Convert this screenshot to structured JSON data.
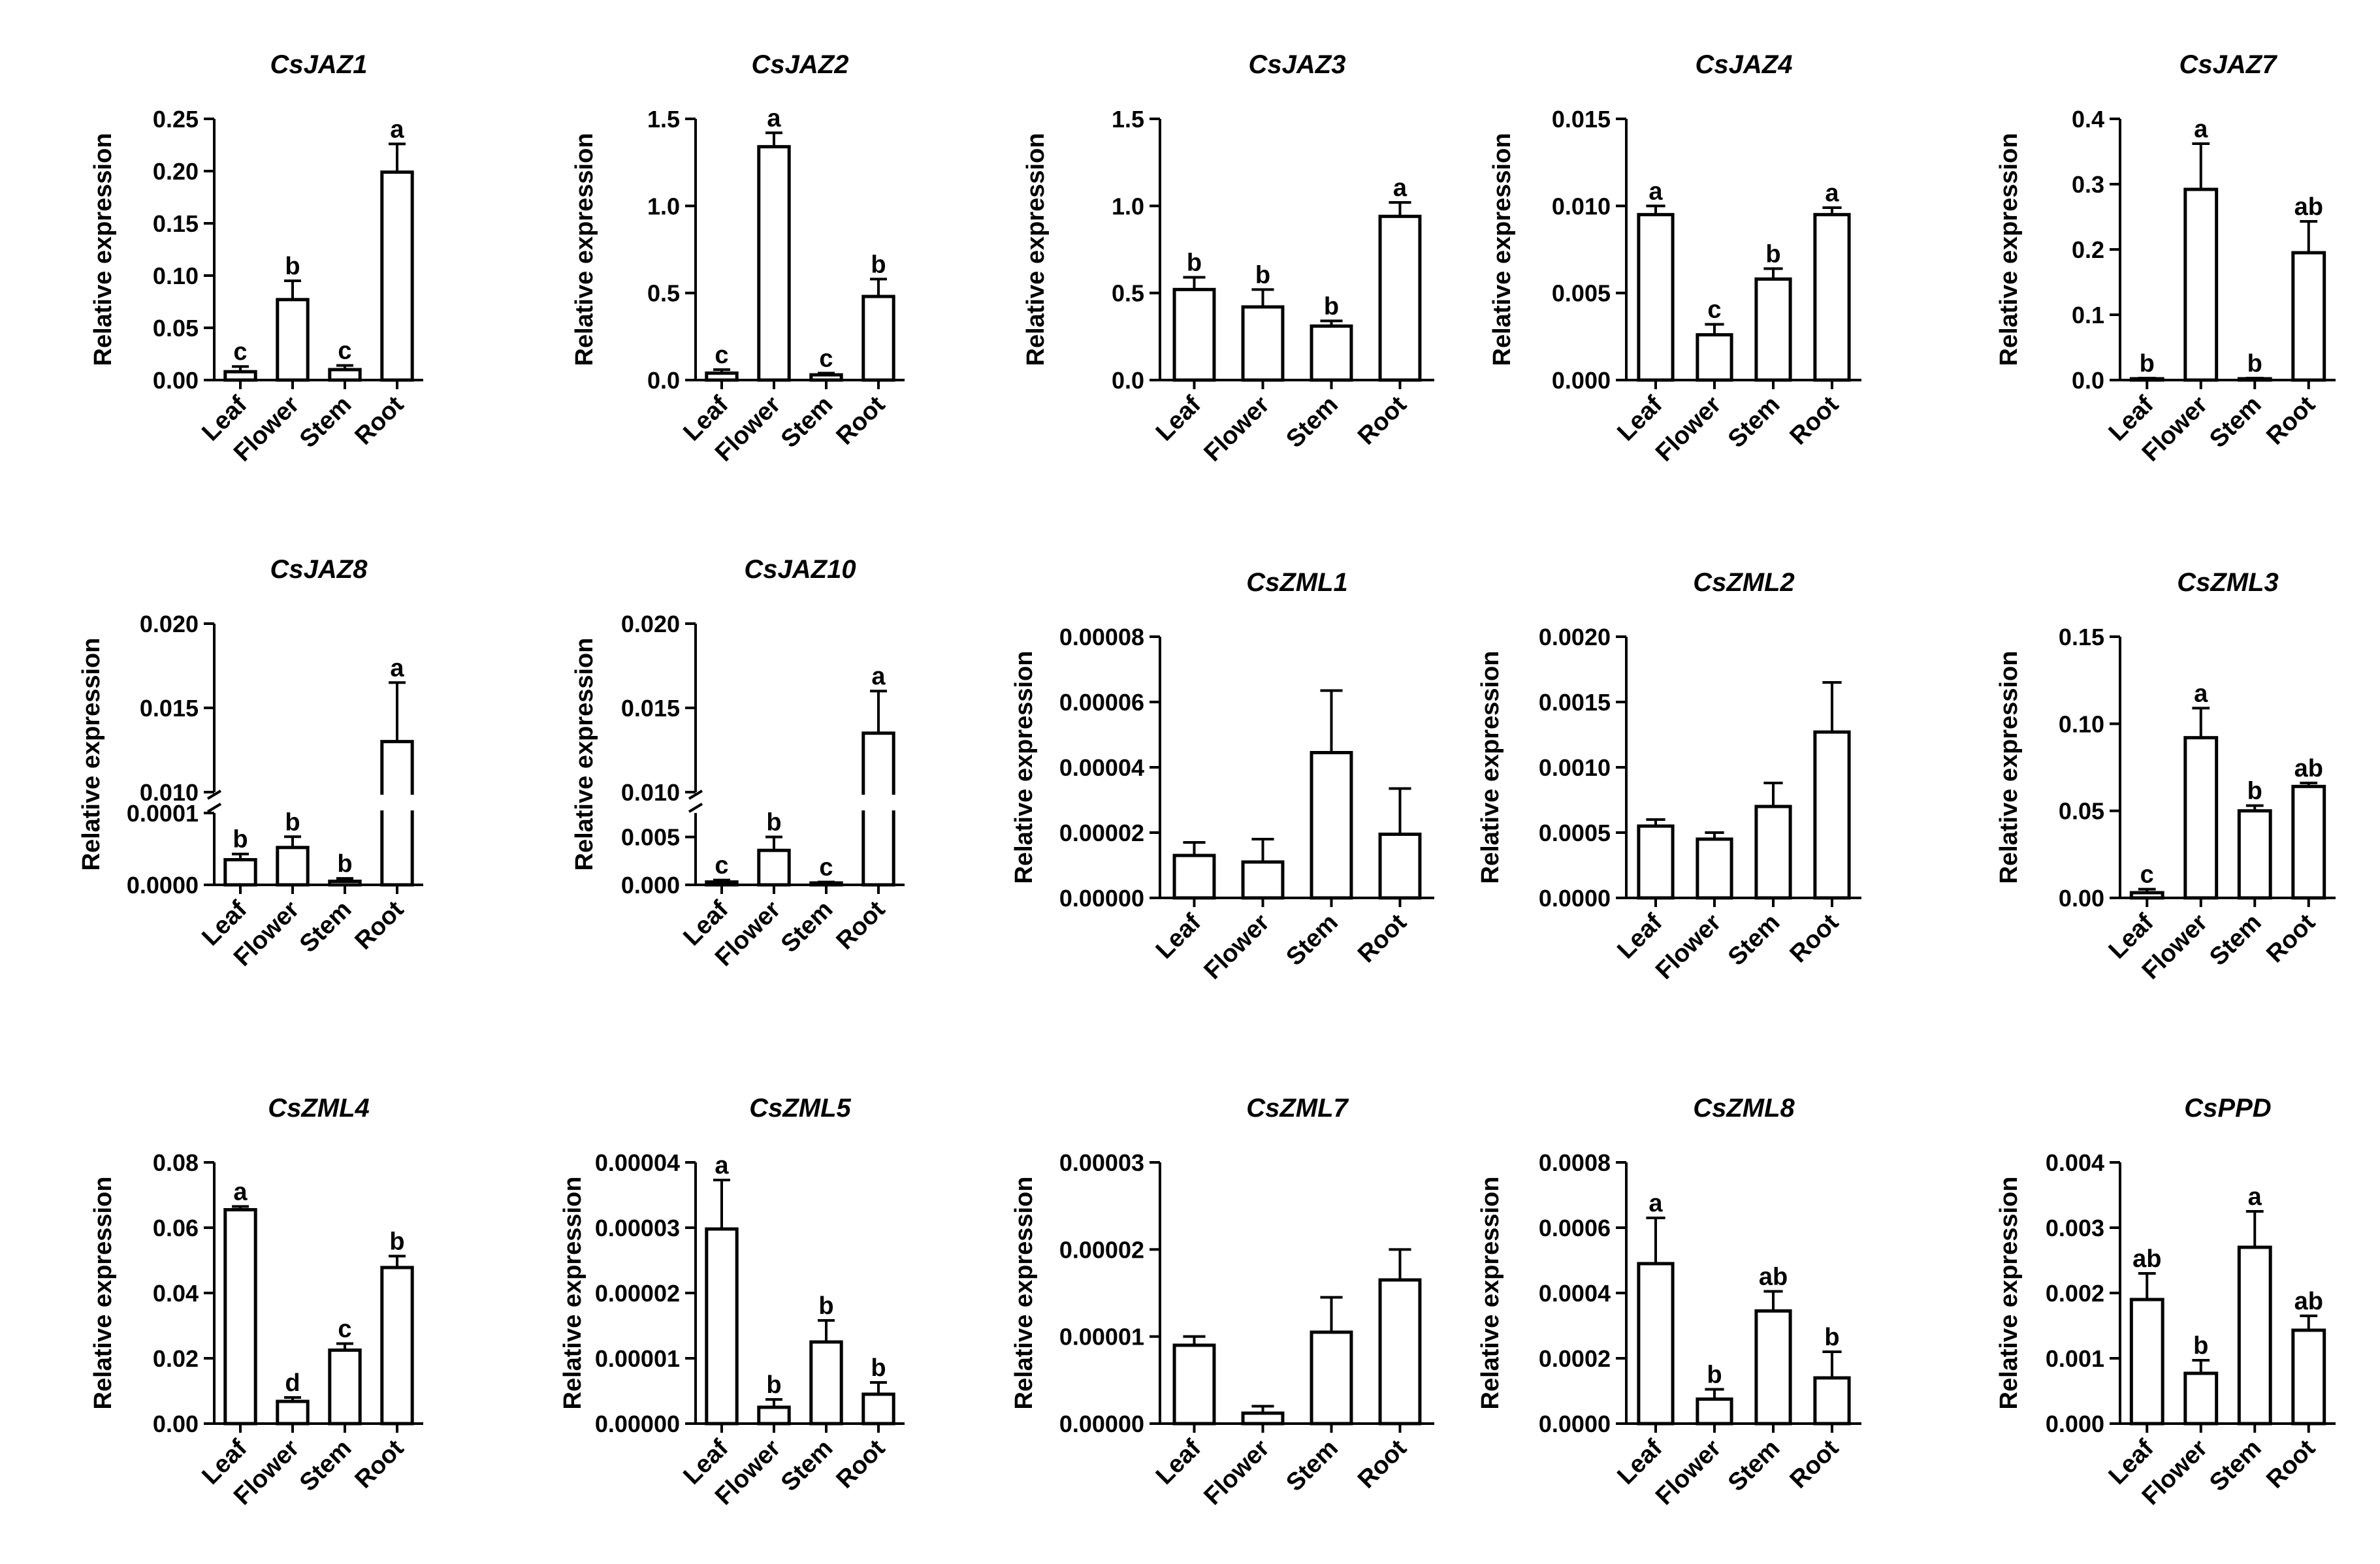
{
  "figure": {
    "ylabel": "Relative expression",
    "xcategories": [
      "Leaf",
      "Flower",
      "Stem",
      "Root"
    ]
  },
  "chart_data": [
    {
      "type": "bar",
      "title": "CsJAZ1",
      "ylabel": "Relative expression",
      "categories": [
        "Leaf",
        "Flower",
        "Stem",
        "Root"
      ],
      "ylim": [
        0,
        0.25
      ],
      "yticks": [
        "0.00",
        "0.05",
        "0.10",
        "0.15",
        "0.20",
        "0.25"
      ],
      "values": [
        0.008,
        0.077,
        0.01,
        0.199
      ],
      "errors": [
        0.005,
        0.018,
        0.004,
        0.027
      ],
      "letters": [
        "c",
        "b",
        "c",
        "a"
      ]
    },
    {
      "type": "bar",
      "title": "CsJAZ2",
      "ylabel": "Relative expression",
      "categories": [
        "Leaf",
        "Flower",
        "Stem",
        "Root"
      ],
      "ylim": [
        0,
        1.5
      ],
      "yticks": [
        "0.0",
        "0.5",
        "1.0",
        "1.5"
      ],
      "values": [
        0.04,
        1.34,
        0.03,
        0.48
      ],
      "errors": [
        0.02,
        0.08,
        0.01,
        0.1
      ],
      "letters": [
        "c",
        "a",
        "c",
        "b"
      ]
    },
    {
      "type": "bar",
      "title": "CsJAZ3",
      "ylabel": "Relative expression",
      "categories": [
        "Leaf",
        "Flower",
        "Stem",
        "Root"
      ],
      "ylim": [
        0,
        1.5
      ],
      "yticks": [
        "0.0",
        "0.5",
        "1.0",
        "1.5"
      ],
      "values": [
        0.52,
        0.42,
        0.31,
        0.94
      ],
      "errors": [
        0.07,
        0.1,
        0.03,
        0.08
      ],
      "letters": [
        "b",
        "b",
        "b",
        "a"
      ]
    },
    {
      "type": "bar",
      "title": "CsJAZ4",
      "ylabel": "Relative expression",
      "categories": [
        "Leaf",
        "Flower",
        "Stem",
        "Root"
      ],
      "ylim": [
        0,
        0.015
      ],
      "yticks": [
        "0.000",
        "0.005",
        "0.010",
        "0.015"
      ],
      "values": [
        0.0095,
        0.0026,
        0.0058,
        0.0095
      ],
      "errors": [
        0.0005,
        0.0006,
        0.0006,
        0.0004
      ],
      "letters": [
        "a",
        "c",
        "b",
        "a"
      ]
    },
    {
      "type": "bar",
      "title": "CsJAZ7",
      "ylabel": "Relative expression",
      "categories": [
        "Leaf",
        "Flower",
        "Stem",
        "Root"
      ],
      "ylim": [
        0,
        0.4
      ],
      "yticks": [
        "0.0",
        "0.1",
        "0.2",
        "0.3",
        "0.4"
      ],
      "values": [
        0.002,
        0.292,
        0.002,
        0.195
      ],
      "errors": [
        0.001,
        0.07,
        0.001,
        0.048
      ],
      "letters": [
        "b",
        "a",
        "b",
        "ab"
      ]
    },
    {
      "type": "bar",
      "title": "CsJAZ8",
      "ylabel": "Relative expression",
      "categories": [
        "Leaf",
        "Flower",
        "Stem",
        "Root"
      ],
      "ylim": [
        0,
        0.02
      ],
      "axis_break": {
        "lower_max": 0.0001,
        "upper_min": 0.01
      },
      "yticks": [
        "0.0000",
        "0.0001",
        "0.010",
        "0.015",
        "0.020"
      ],
      "values": [
        3.5e-05,
        5.2e-05,
        5e-06,
        0.013
      ],
      "errors": [
        8e-06,
        1.5e-05,
        4e-06,
        0.0035
      ],
      "letters": [
        "b",
        "b",
        "b",
        "a"
      ]
    },
    {
      "type": "bar",
      "title": "CsJAZ10",
      "ylabel": "Relative expression",
      "categories": [
        "Leaf",
        "Flower",
        "Stem",
        "Root"
      ],
      "ylim": [
        0,
        0.02
      ],
      "axis_break": {
        "lower_max": 0.0075,
        "upper_min": 0.01
      },
      "yticks": [
        "0.000",
        "0.005",
        "0.010",
        "0.015",
        "0.020"
      ],
      "values": [
        0.0003,
        0.0036,
        0.0002,
        0.0135
      ],
      "errors": [
        0.0002,
        0.0014,
        0.0001,
        0.0025
      ],
      "letters": [
        "c",
        "b",
        "c",
        "a"
      ]
    },
    {
      "type": "bar",
      "title": "CsZML1",
      "ylabel": "Relative expression",
      "categories": [
        "Leaf",
        "Flower",
        "Stem",
        "Root"
      ],
      "ylim": [
        0,
        8e-05
      ],
      "yticks": [
        "0.00000",
        "0.00002",
        "0.00004",
        "0.00006",
        "0.00008"
      ],
      "values": [
        1.3e-05,
        1.1e-05,
        4.45e-05,
        1.95e-05
      ],
      "errors": [
        4e-06,
        7e-06,
        1.9e-05,
        1.4e-05
      ],
      "letters": [
        "",
        "",
        "",
        ""
      ]
    },
    {
      "type": "bar",
      "title": "CsZML2",
      "ylabel": "Relative expression",
      "categories": [
        "Leaf",
        "Flower",
        "Stem",
        "Root"
      ],
      "ylim": [
        0,
        0.002
      ],
      "yticks": [
        "0.0000",
        "0.0005",
        "0.0010",
        "0.0015",
        "0.0020"
      ],
      "values": [
        0.00055,
        0.00045,
        0.0007,
        0.00127
      ],
      "errors": [
        5e-05,
        5e-05,
        0.00018,
        0.00038
      ],
      "letters": [
        "",
        "",
        "",
        ""
      ]
    },
    {
      "type": "bar",
      "title": "CsZML3",
      "ylabel": "Relative expression",
      "categories": [
        "Leaf",
        "Flower",
        "Stem",
        "Root"
      ],
      "ylim": [
        0,
        0.15
      ],
      "yticks": [
        "0.00",
        "0.05",
        "0.10",
        "0.15"
      ],
      "values": [
        0.003,
        0.092,
        0.05,
        0.064
      ],
      "errors": [
        0.002,
        0.017,
        0.003,
        0.002
      ],
      "letters": [
        "c",
        "a",
        "b",
        "ab"
      ]
    },
    {
      "type": "bar",
      "title": "CsZML4",
      "ylabel": "Relative expression",
      "categories": [
        "Leaf",
        "Flower",
        "Stem",
        "Root"
      ],
      "ylim": [
        0,
        0.08
      ],
      "yticks": [
        "0.00",
        "0.02",
        "0.04",
        "0.06",
        "0.08"
      ],
      "values": [
        0.0655,
        0.0068,
        0.0225,
        0.0478
      ],
      "errors": [
        0.001,
        0.0012,
        0.002,
        0.0035
      ],
      "letters": [
        "a",
        "d",
        "c",
        "b"
      ]
    },
    {
      "type": "bar",
      "title": "CsZML5",
      "ylabel": "Relative expression",
      "categories": [
        "Leaf",
        "Flower",
        "Stem",
        "Root"
      ],
      "ylim": [
        0,
        4e-05
      ],
      "yticks": [
        "0.00000",
        "0.00001",
        "0.00002",
        "0.00003",
        "0.00004"
      ],
      "values": [
        2.98e-05,
        2.5e-06,
        1.25e-05,
        4.5e-06
      ],
      "errors": [
        7.5e-06,
        1.2e-06,
        3.3e-06,
        1.8e-06
      ],
      "letters": [
        "a",
        "b",
        "b",
        "b"
      ]
    },
    {
      "type": "bar",
      "title": "CsZML7",
      "ylabel": "Relative expression",
      "categories": [
        "Leaf",
        "Flower",
        "Stem",
        "Root"
      ],
      "ylim": [
        0,
        3e-05
      ],
      "yticks": [
        "0.00000",
        "0.00001",
        "0.00002",
        "0.00003"
      ],
      "values": [
        9e-06,
        1.2e-06,
        1.05e-05,
        1.65e-05
      ],
      "errors": [
        1e-06,
        8e-07,
        4e-06,
        3.5e-06
      ],
      "letters": [
        "",
        "",
        "",
        ""
      ]
    },
    {
      "type": "bar",
      "title": "CsZML8",
      "ylabel": "Relative expression",
      "categories": [
        "Leaf",
        "Flower",
        "Stem",
        "Root"
      ],
      "ylim": [
        0,
        0.0008
      ],
      "yticks": [
        "0.0000",
        "0.0002",
        "0.0004",
        "0.0006",
        "0.0008"
      ],
      "values": [
        0.00049,
        7.5e-05,
        0.000345,
        0.00014
      ],
      "errors": [
        0.00014,
        3e-05,
        6e-05,
        8e-05
      ],
      "letters": [
        "a",
        "b",
        "ab",
        "b"
      ]
    },
    {
      "type": "bar",
      "title": "CsPPD",
      "ylabel": "Relative expression",
      "categories": [
        "Leaf",
        "Flower",
        "Stem",
        "Root"
      ],
      "ylim": [
        0,
        0.004
      ],
      "yticks": [
        "0.000",
        "0.001",
        "0.002",
        "0.003",
        "0.004"
      ],
      "values": [
        0.0019,
        0.00077,
        0.0027,
        0.00143
      ],
      "errors": [
        0.0004,
        0.0002,
        0.00055,
        0.00022
      ],
      "letters": [
        "ab",
        "b",
        "a",
        "ab"
      ]
    }
  ]
}
